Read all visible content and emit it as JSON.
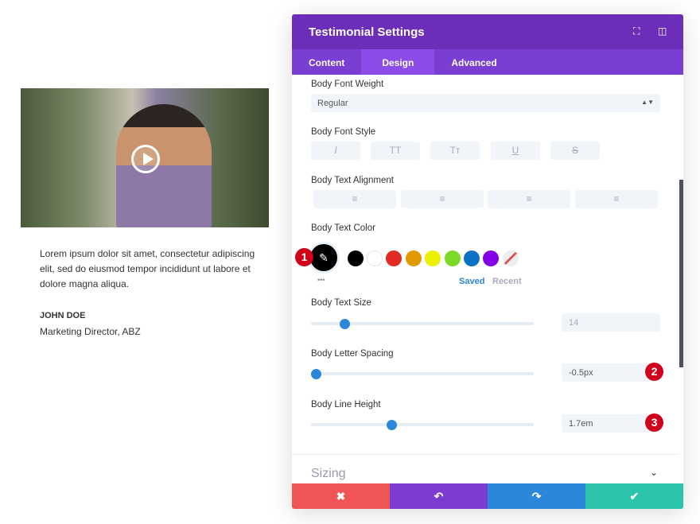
{
  "preview": {
    "quote": "Lorem ipsum dolor sit amet, consectetur adipiscing elit, sed do eiusmod tempor incididunt ut labore et dolore magna aliqua.",
    "name": "JOHN DOE",
    "role": "Marketing Director, ABZ"
  },
  "panel": {
    "title": "Testimonial Settings",
    "tabs": [
      "Content",
      "Design",
      "Advanced"
    ],
    "active_tab": "Design",
    "font_weight": {
      "label": "Body Font Weight",
      "value": "Regular"
    },
    "font_style": {
      "label": "Body Font Style",
      "buttons": [
        "I",
        "TT",
        "Tт",
        "U",
        "S"
      ]
    },
    "alignment": {
      "label": "Body Text Alignment",
      "icons": [
        "align-left-icon",
        "align-center-icon",
        "align-right-icon",
        "align-justify-icon"
      ]
    },
    "text_color": {
      "label": "Body Text Color",
      "swatches": [
        "#000000",
        "#ffffff",
        "#e02b20",
        "#e09900",
        "#edf000",
        "#7cda24",
        "#0c71c3",
        "#8300e9"
      ],
      "saved": "Saved",
      "recent": "Recent",
      "more": "•••"
    },
    "text_size": {
      "label": "Body Text Size",
      "value": "14",
      "percent": 15
    },
    "letter_spacing": {
      "label": "Body Letter Spacing",
      "value": "-0.5px",
      "percent": 2
    },
    "line_height": {
      "label": "Body Line Height",
      "value": "1.7em",
      "percent": 36
    },
    "sizing": "Sizing",
    "badges": [
      "1",
      "2",
      "3"
    ],
    "footer": {
      "cancel": "✖",
      "undo": "↶",
      "redo": "↷",
      "save": "✔",
      "colors": [
        "#ef5555",
        "#7e3bd0",
        "#2b87da",
        "#29c4a9"
      ]
    }
  }
}
